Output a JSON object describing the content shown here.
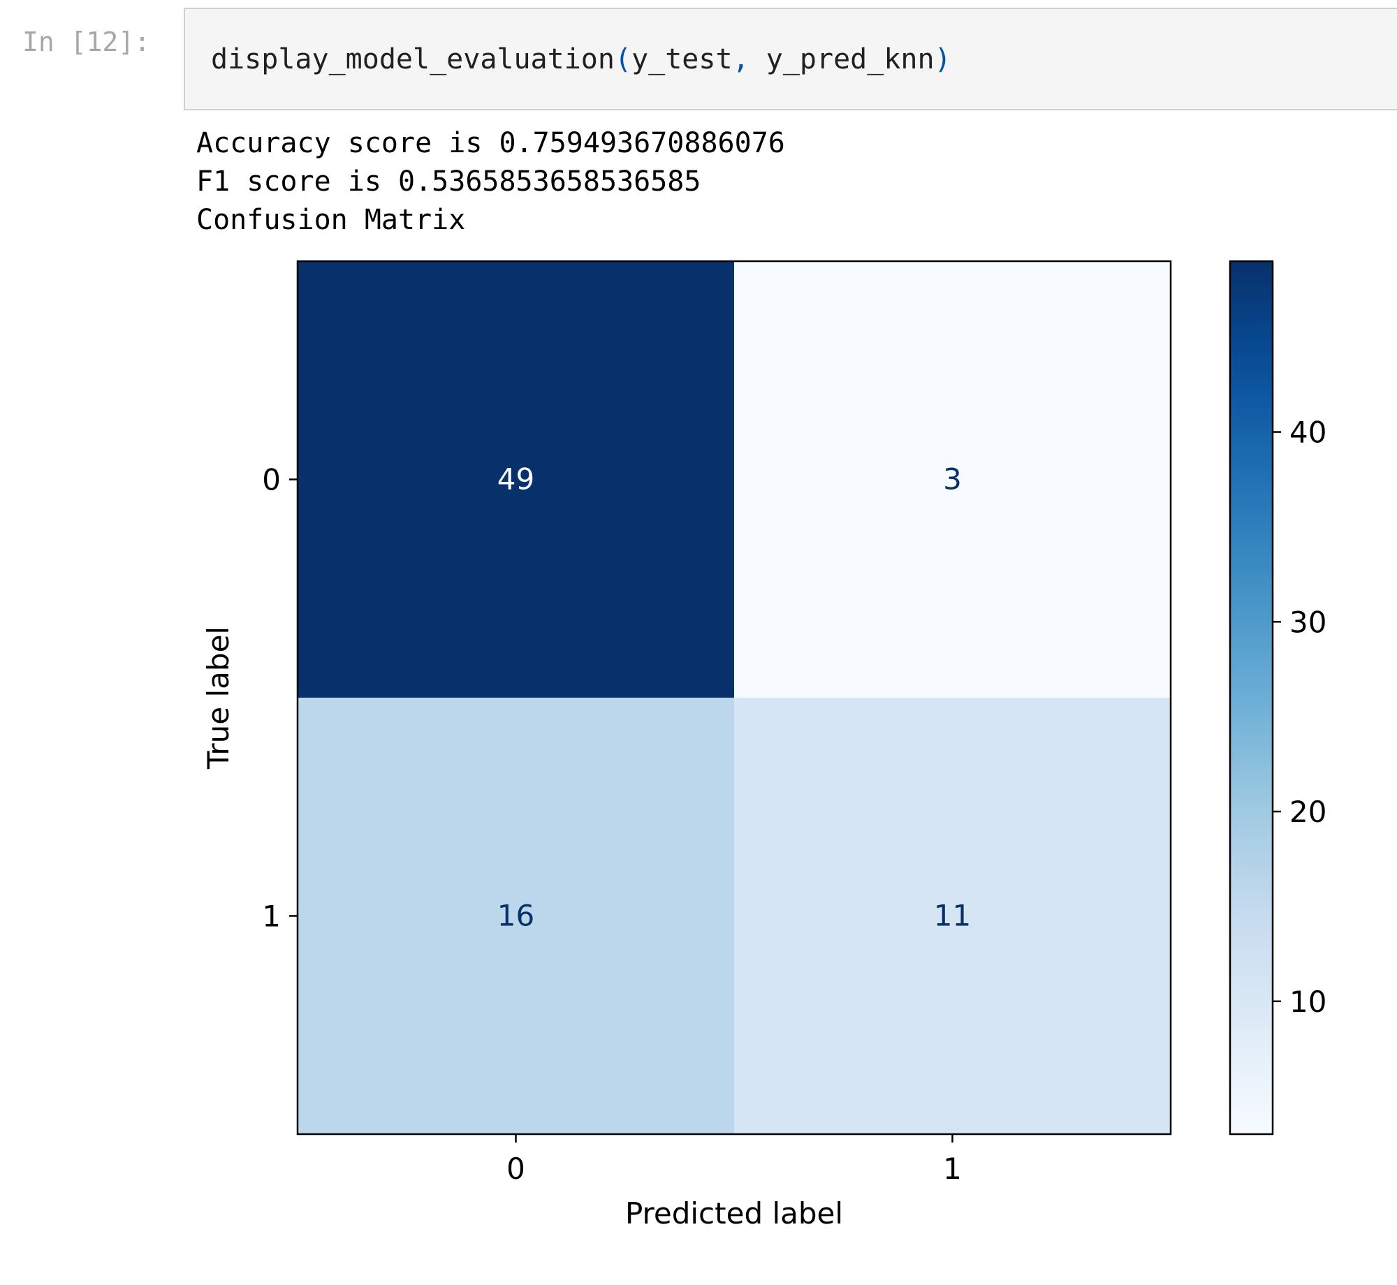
{
  "cell": {
    "prompt": "In [12]:",
    "code": {
      "func": "display_model_evaluation",
      "open_paren": "(",
      "arg1": "y_test",
      "comma": ",",
      "arg2": " y_pred_knn",
      "close_paren": ")"
    }
  },
  "output": {
    "lines": [
      "Accuracy score is 0.759493670886076",
      "F1 score is 0.5365853658536585",
      "Confusion Matrix"
    ]
  },
  "colors": {
    "cmap": "Blues",
    "text_dark": "#08306b",
    "text_light": "#f7fbff"
  },
  "chart_data": {
    "type": "heatmap",
    "title": "",
    "xlabel": "Predicted label",
    "ylabel": "True label",
    "x_categories": [
      "0",
      "1"
    ],
    "y_categories": [
      "0",
      "1"
    ],
    "matrix": [
      [
        49,
        3
      ],
      [
        16,
        11
      ]
    ],
    "colorbar": {
      "range": [
        3,
        49
      ],
      "ticks": [
        10,
        20,
        30,
        40
      ]
    }
  }
}
